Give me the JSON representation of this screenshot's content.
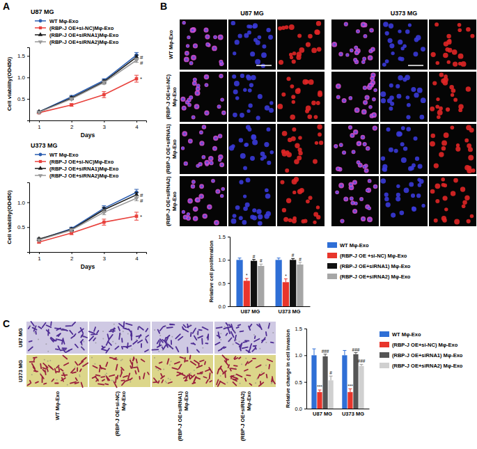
{
  "figure": {
    "panel_labels": [
      "A",
      "B",
      "C"
    ],
    "panel_b_images": {
      "columns": [
        "U87 MG",
        "U373 MG"
      ],
      "rows": [
        "WT Mφ-Exo",
        "(RBP-J OE+si-NC) Mφ-Exo",
        "(RBP-J OE+siRNA1) Mφ-Exo",
        "(RBP-J OE+siRNA2) Mφ-Exo"
      ]
    },
    "panel_c_images": {
      "rows": [
        "U87 MG",
        "U373 MG"
      ],
      "columns": [
        "WT Mφ-Exo",
        "(RBP-J OE+si-NC) Mφ-Exo",
        "(RBP-J OE+siRNA1) Mφ-Exo",
        "(RBP-J OE+siRNA2) Mφ-Exo"
      ]
    }
  },
  "chart_data": [
    {
      "type": "line",
      "title": "U87 MG",
      "x_label": "Days",
      "y_label": "Cell viability(OD450)",
      "x": [
        1,
        2,
        3,
        4
      ],
      "xlim": [
        0.7,
        4.3
      ],
      "xticks": [
        1,
        2,
        3,
        4
      ],
      "ylim": [
        0,
        1.7
      ],
      "yticks": [
        0.5,
        {
          "value": 1,
          "label": "1.0"
        },
        1.5
      ],
      "legend": "top-left",
      "series": [
        {
          "name": "WT Mφ-Exo",
          "color": "#2a5db0",
          "marker": "circle",
          "values": [
            0.2,
            0.55,
            0.93,
            1.52
          ],
          "errors": [
            0.02,
            0.03,
            0.04,
            0.06
          ]
        },
        {
          "name": "(RBP-J OE+si-NC)Mφ-Exo",
          "color": "#e8413c",
          "marker": "square",
          "values": [
            0.18,
            0.36,
            0.6,
            0.97
          ],
          "errors": [
            0.02,
            0.03,
            0.07,
            0.08
          ],
          "annotations": [
            null,
            null,
            null,
            "*"
          ]
        },
        {
          "name": "(RBP-J OE+siRNA1)Mφ-Exo",
          "color": "#1a1a1a",
          "marker": "triangle",
          "values": [
            0.2,
            0.52,
            0.9,
            1.47
          ],
          "errors": [
            0.02,
            0.03,
            0.04,
            0.05
          ],
          "annotations": [
            null,
            null,
            null,
            "#"
          ]
        },
        {
          "name": "(RBP-J OE+siRNA2)Mφ-Exo",
          "color": "#999999",
          "marker": "triangle-down",
          "values": [
            0.19,
            0.5,
            0.88,
            1.4
          ],
          "errors": [
            0.02,
            0.03,
            0.04,
            0.05
          ],
          "annotations": [
            null,
            null,
            null,
            "#"
          ]
        }
      ]
    },
    {
      "type": "line",
      "title": "U373 MG",
      "x_label": "Days",
      "y_label": "Cell viability(OD450)",
      "x": [
        1,
        2,
        3,
        4
      ],
      "xlim": [
        0.7,
        4.3
      ],
      "xticks": [
        1,
        2,
        3,
        4
      ],
      "ylim": [
        0,
        1.4
      ],
      "yticks": [
        0.5,
        {
          "value": 1,
          "label": "1.0"
        }
      ],
      "legend": "top-left",
      "series": [
        {
          "name": "WT Mφ-Exo",
          "color": "#2a5db0",
          "marker": "circle",
          "values": [
            0.25,
            0.47,
            0.88,
            1.2
          ],
          "errors": [
            0.02,
            0.03,
            0.05,
            0.06
          ]
        },
        {
          "name": "(RBP-J OE+si-NC)Mφ-Exo",
          "color": "#e8413c",
          "marker": "square",
          "values": [
            0.2,
            0.38,
            0.6,
            0.72
          ],
          "errors": [
            0.02,
            0.03,
            0.06,
            0.08
          ],
          "annotations": [
            null,
            null,
            null,
            "*"
          ]
        },
        {
          "name": "(RBP-J OE+siRNA1)Mφ-Exo",
          "color": "#1a1a1a",
          "marker": "triangle",
          "values": [
            0.26,
            0.45,
            0.85,
            1.15
          ],
          "errors": [
            0.02,
            0.03,
            0.05,
            0.05
          ],
          "annotations": [
            null,
            null,
            null,
            "#"
          ]
        },
        {
          "name": "(RBP-J OE+siRNA2)Mφ-Exo",
          "color": "#999999",
          "marker": "triangle-down",
          "values": [
            0.24,
            0.44,
            0.8,
            1.08
          ],
          "errors": [
            0.02,
            0.03,
            0.05,
            0.05
          ],
          "annotations": [
            null,
            null,
            null,
            "#"
          ]
        }
      ]
    },
    {
      "type": "bar",
      "y_label": "Relative cell proliferation",
      "categories": [
        "U87 MG",
        "U373 MG"
      ],
      "ylim": [
        0,
        1.5
      ],
      "yticks": [
        {
          "value": 0,
          "label": "0.0"
        },
        0.5,
        {
          "value": 1,
          "label": "1.0"
        },
        1.5
      ],
      "legend": "right",
      "series": [
        {
          "name": "WT Mφ-Exo",
          "color": "#2f6fd6",
          "values": [
            1.0,
            1.0
          ],
          "errors": [
            0.04,
            0.04
          ]
        },
        {
          "name": "(RBP-J OE +si-NC) Mφ-Exo",
          "color": "#e8362c",
          "values": [
            0.55,
            0.52
          ],
          "errors": [
            0.05,
            0.07
          ],
          "annotations": [
            "*",
            "*"
          ]
        },
        {
          "name": "(RBP-J OE+siRNA1) Mφ-Exo",
          "color": "#111111",
          "values": [
            0.98,
            1.0
          ],
          "errors": [
            0.03,
            0.03
          ],
          "annotations": [
            "#",
            "#"
          ]
        },
        {
          "name": "(RBP-J OE+siRNA2) Mφ-Exo",
          "color": "#a6a6a6",
          "values": [
            0.87,
            0.9
          ],
          "errors": [
            0.04,
            0.05
          ],
          "annotations": [
            "#",
            "#"
          ]
        }
      ]
    },
    {
      "type": "bar",
      "y_label": "Relative change in cell invasion",
      "categories": [
        "U87 MG",
        "U373 MG"
      ],
      "ylim": [
        0,
        1.5
      ],
      "yticks": [
        {
          "value": 0,
          "label": "0.0"
        },
        0.5,
        {
          "value": 1,
          "label": "1.0"
        },
        1.5
      ],
      "legend": "right",
      "series": [
        {
          "name": "WT Mφ-Exo",
          "color": "#2f6fd6",
          "values": [
            1.0,
            1.0
          ],
          "errors": [
            0.12,
            0.09
          ]
        },
        {
          "name": "(RBP-J OE+si-NC) Mφ-Exo",
          "color": "#e8362c",
          "values": [
            0.31,
            0.31
          ],
          "errors": [
            0.04,
            0.06
          ],
          "annotations": [
            "***",
            "***"
          ]
        },
        {
          "name": "(RBP-J OE+siRNA1) Mφ-Exo",
          "color": "#555555",
          "values": [
            0.98,
            1.02
          ],
          "errors": [
            0.04,
            0.03
          ],
          "annotations": [
            "###",
            "###"
          ]
        },
        {
          "name": "(RBP-J OE+siRNA2) Mφ-Exo",
          "color": "#d0d0d0",
          "values": [
            0.53,
            0.8
          ],
          "errors": [
            0.08,
            0.03
          ],
          "annotations": [
            "#",
            "###"
          ]
        }
      ]
    }
  ]
}
